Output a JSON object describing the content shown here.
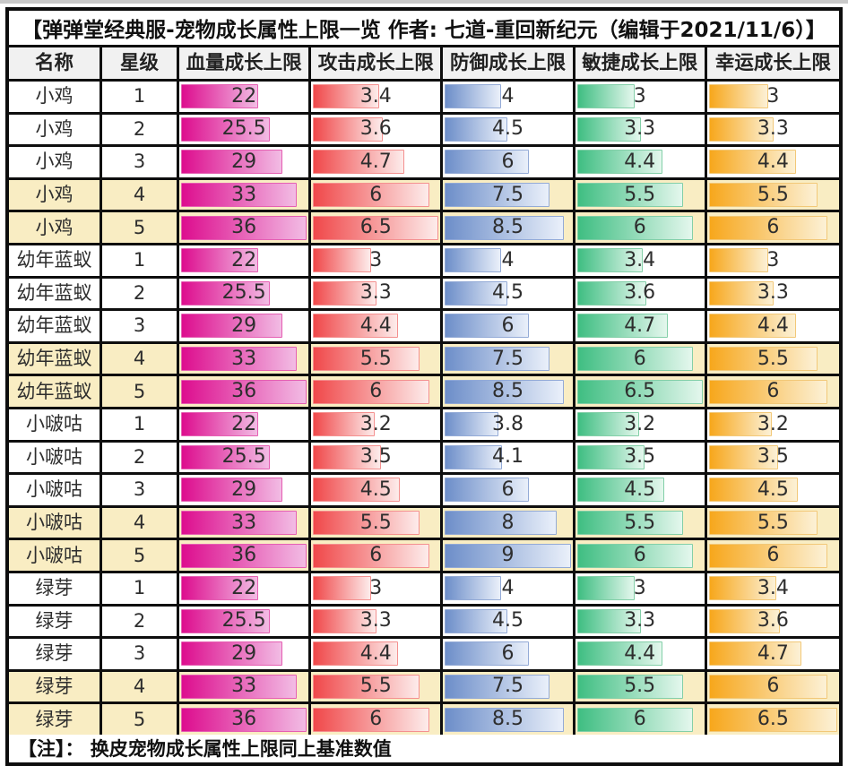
{
  "title": "【弹弹堂经典服-宠物成长属性上限一览 作者: 七道-重回新纪元（编辑于2021/11/6）】",
  "footer_note": "【注】：  换皮宠物成长属性上限同上基准数值",
  "colors": {
    "grid": "#0e0e0e",
    "header_bg": "#f1f1f1",
    "highlight_row_bg": "#f9edc3",
    "text": "#2e2e2e",
    "hp_from": "#dd0d8e",
    "hp_to": "#f2bce4",
    "hp_border": "#e55fb2",
    "atk_from": "#f0484a",
    "atk_to": "#fdeceb",
    "atk_border": "#f4908f",
    "def_from": "#6d8ec9",
    "def_to": "#eaf0fa",
    "def_border": "#93aad6",
    "agi_from": "#3fbe82",
    "agi_to": "#e4f7ed",
    "agi_border": "#83cfa8",
    "luck_from": "#f7a71c",
    "luck_to": "#fcf1d6",
    "luck_border": "#f2c878"
  },
  "chart_data": {
    "type": "table",
    "title": "弹弹堂经典服-宠物成长属性上限一览",
    "author": "七道-重回新纪元",
    "edited": "2021/11/6",
    "columns": [
      "名称",
      "星级",
      "血量成长上限",
      "攻击成长上限",
      "防御成长上限",
      "敏捷成长上限",
      "幸运成长上限"
    ],
    "bar_keys": [
      "hp",
      "atk",
      "def",
      "agi",
      "luck"
    ],
    "bar_scale_max": {
      "hp": 36,
      "atk": 6.5,
      "def": 9,
      "agi": 6.5,
      "luck": 6.5
    },
    "highlight_stars": [
      4,
      5
    ],
    "rows": [
      {
        "name": "小鸡",
        "star": 1,
        "hp": 22,
        "atk": 3.4,
        "def": 4,
        "agi": 3,
        "luck": 3
      },
      {
        "name": "小鸡",
        "star": 2,
        "hp": 25.5,
        "atk": 3.6,
        "def": 4.5,
        "agi": 3.3,
        "luck": 3.3
      },
      {
        "name": "小鸡",
        "star": 3,
        "hp": 29,
        "atk": 4.7,
        "def": 6,
        "agi": 4.4,
        "luck": 4.4
      },
      {
        "name": "小鸡",
        "star": 4,
        "hp": 33,
        "atk": 6,
        "def": 7.5,
        "agi": 5.5,
        "luck": 5.5
      },
      {
        "name": "小鸡",
        "star": 5,
        "hp": 36,
        "atk": 6.5,
        "def": 8.5,
        "agi": 6,
        "luck": 6
      },
      {
        "name": "幼年蓝蚁",
        "star": 1,
        "hp": 22,
        "atk": 3,
        "def": 4,
        "agi": 3.4,
        "luck": 3
      },
      {
        "name": "幼年蓝蚁",
        "star": 2,
        "hp": 25.5,
        "atk": 3.3,
        "def": 4.5,
        "agi": 3.6,
        "luck": 3.3
      },
      {
        "name": "幼年蓝蚁",
        "star": 3,
        "hp": 29,
        "atk": 4.4,
        "def": 6,
        "agi": 4.7,
        "luck": 4.4
      },
      {
        "name": "幼年蓝蚁",
        "star": 4,
        "hp": 33,
        "atk": 5.5,
        "def": 7.5,
        "agi": 6,
        "luck": 5.5
      },
      {
        "name": "幼年蓝蚁",
        "star": 5,
        "hp": 36,
        "atk": 6,
        "def": 8.5,
        "agi": 6.5,
        "luck": 6
      },
      {
        "name": "小啵咕",
        "star": 1,
        "hp": 22,
        "atk": 3.2,
        "def": 3.8,
        "agi": 3.2,
        "luck": 3.2
      },
      {
        "name": "小啵咕",
        "star": 2,
        "hp": 25.5,
        "atk": 3.5,
        "def": 4.1,
        "agi": 3.5,
        "luck": 3.5
      },
      {
        "name": "小啵咕",
        "star": 3,
        "hp": 29,
        "atk": 4.5,
        "def": 6,
        "agi": 4.5,
        "luck": 4.5
      },
      {
        "name": "小啵咕",
        "star": 4,
        "hp": 33,
        "atk": 5.5,
        "def": 8,
        "agi": 5.5,
        "luck": 5.5
      },
      {
        "name": "小啵咕",
        "star": 5,
        "hp": 36,
        "atk": 6,
        "def": 9,
        "agi": 6,
        "luck": 6
      },
      {
        "name": "绿芽",
        "star": 1,
        "hp": 22,
        "atk": 3,
        "def": 4,
        "agi": 3,
        "luck": 3.4
      },
      {
        "name": "绿芽",
        "star": 2,
        "hp": 25.5,
        "atk": 3.3,
        "def": 4.5,
        "agi": 3.3,
        "luck": 3.6
      },
      {
        "name": "绿芽",
        "star": 3,
        "hp": 29,
        "atk": 4.4,
        "def": 6,
        "agi": 4.4,
        "luck": 4.7
      },
      {
        "name": "绿芽",
        "star": 4,
        "hp": 33,
        "atk": 5.5,
        "def": 7.5,
        "agi": 5.5,
        "luck": 6
      },
      {
        "name": "绿芽",
        "star": 5,
        "hp": 36,
        "atk": 6,
        "def": 8.5,
        "agi": 6,
        "luck": 6.5
      }
    ],
    "note": "换皮宠物成长属性上限同上基准数值",
    "legend_position": "none",
    "grid": true
  }
}
